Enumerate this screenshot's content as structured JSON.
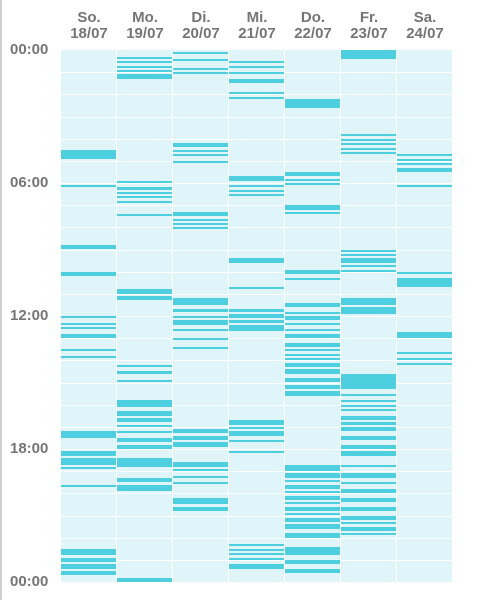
{
  "days": [
    {
      "weekday": "So.",
      "date": "18/07",
      "segments": [
        [
          4.5,
          4.9
        ],
        [
          6.1,
          6.2
        ],
        [
          8.8,
          9.0
        ],
        [
          10.0,
          10.2
        ],
        [
          12.0,
          12.1
        ],
        [
          12.3,
          12.4
        ],
        [
          12.5,
          12.6
        ],
        [
          12.8,
          13.0
        ],
        [
          13.5,
          13.6
        ],
        [
          13.8,
          13.9
        ],
        [
          17.2,
          17.5
        ],
        [
          18.1,
          18.3
        ],
        [
          18.4,
          18.7
        ],
        [
          18.8,
          18.9
        ],
        [
          19.6,
          19.7
        ],
        [
          22.5,
          22.8
        ],
        [
          22.9,
          23.1
        ],
        [
          23.2,
          23.4
        ],
        [
          23.5,
          23.7
        ]
      ]
    },
    {
      "weekday": "Mo.",
      "date": "19/07",
      "segments": [
        [
          0.3,
          0.4
        ],
        [
          0.5,
          0.6
        ],
        [
          0.7,
          0.8
        ],
        [
          0.9,
          1.0
        ],
        [
          1.1,
          1.3
        ],
        [
          5.9,
          6.0
        ],
        [
          6.2,
          6.3
        ],
        [
          6.4,
          6.5
        ],
        [
          6.6,
          6.7
        ],
        [
          6.8,
          6.9
        ],
        [
          7.4,
          7.5
        ],
        [
          10.8,
          11.0
        ],
        [
          11.1,
          11.3
        ],
        [
          14.2,
          14.3
        ],
        [
          14.5,
          14.6
        ],
        [
          14.9,
          15.0
        ],
        [
          15.8,
          16.1
        ],
        [
          16.3,
          16.5
        ],
        [
          16.6,
          16.8
        ],
        [
          16.9,
          17.0
        ],
        [
          17.2,
          17.3
        ],
        [
          17.5,
          17.7
        ],
        [
          17.8,
          18.0
        ],
        [
          18.4,
          18.8
        ],
        [
          19.3,
          19.5
        ],
        [
          19.6,
          19.9
        ],
        [
          23.8,
          24.0
        ]
      ]
    },
    {
      "weekday": "Di.",
      "date": "20/07",
      "segments": [
        [
          0.1,
          0.2
        ],
        [
          0.4,
          0.5
        ],
        [
          0.8,
          0.9
        ],
        [
          1.0,
          1.1
        ],
        [
          4.2,
          4.4
        ],
        [
          4.5,
          4.6
        ],
        [
          4.7,
          4.8
        ],
        [
          5.0,
          5.1
        ],
        [
          7.3,
          7.5
        ],
        [
          7.6,
          7.7
        ],
        [
          7.8,
          7.9
        ],
        [
          8.0,
          8.1
        ],
        [
          11.2,
          11.5
        ],
        [
          11.7,
          11.8
        ],
        [
          12.0,
          12.1
        ],
        [
          12.2,
          12.4
        ],
        [
          12.6,
          12.7
        ],
        [
          13.0,
          13.1
        ],
        [
          13.4,
          13.5
        ],
        [
          17.1,
          17.3
        ],
        [
          17.4,
          17.6
        ],
        [
          17.7,
          17.9
        ],
        [
          18.6,
          18.8
        ],
        [
          18.9,
          19.0
        ],
        [
          19.2,
          19.3
        ],
        [
          19.5,
          19.6
        ],
        [
          20.2,
          20.5
        ],
        [
          20.6,
          20.8
        ]
      ]
    },
    {
      "weekday": "Mi.",
      "date": "21/07",
      "segments": [
        [
          0.5,
          0.6
        ],
        [
          0.7,
          0.8
        ],
        [
          1.0,
          1.1
        ],
        [
          1.3,
          1.5
        ],
        [
          1.9,
          2.0
        ],
        [
          2.1,
          2.2
        ],
        [
          5.7,
          5.9
        ],
        [
          6.1,
          6.2
        ],
        [
          6.3,
          6.4
        ],
        [
          6.5,
          6.6
        ],
        [
          9.4,
          9.6
        ],
        [
          10.7,
          10.8
        ],
        [
          11.7,
          11.8
        ],
        [
          11.9,
          12.1
        ],
        [
          12.2,
          12.3
        ],
        [
          12.4,
          12.7
        ],
        [
          16.7,
          16.9
        ],
        [
          17.0,
          17.1
        ],
        [
          17.2,
          17.4
        ],
        [
          17.6,
          17.7
        ],
        [
          18.1,
          18.2
        ],
        [
          22.3,
          22.4
        ],
        [
          22.5,
          22.6
        ],
        [
          22.7,
          22.8
        ],
        [
          22.9,
          23.0
        ],
        [
          23.2,
          23.4
        ]
      ]
    },
    {
      "weekday": "Do.",
      "date": "22/07",
      "segments": [
        [
          2.2,
          2.6
        ],
        [
          5.5,
          5.7
        ],
        [
          5.8,
          5.9
        ],
        [
          6.0,
          6.1
        ],
        [
          7.0,
          7.2
        ],
        [
          7.3,
          7.4
        ],
        [
          9.9,
          10.1
        ],
        [
          10.3,
          10.4
        ],
        [
          11.4,
          11.6
        ],
        [
          11.8,
          11.9
        ],
        [
          12.0,
          12.2
        ],
        [
          12.3,
          12.4
        ],
        [
          12.6,
          12.7
        ],
        [
          12.8,
          13.0
        ],
        [
          13.2,
          13.4
        ],
        [
          13.5,
          13.6
        ],
        [
          13.7,
          13.8
        ],
        [
          13.9,
          14.0
        ],
        [
          14.1,
          14.3
        ],
        [
          14.4,
          14.6
        ],
        [
          14.8,
          15.0
        ],
        [
          15.1,
          15.3
        ],
        [
          15.4,
          15.6
        ],
        [
          18.7,
          19.0
        ],
        [
          19.1,
          19.3
        ],
        [
          19.4,
          19.5
        ],
        [
          19.6,
          19.8
        ],
        [
          19.9,
          20.0
        ],
        [
          20.1,
          20.3
        ],
        [
          20.4,
          20.5
        ],
        [
          20.6,
          20.8
        ],
        [
          20.9,
          21.0
        ],
        [
          21.1,
          21.3
        ],
        [
          21.4,
          21.6
        ],
        [
          21.8,
          22.0
        ],
        [
          22.4,
          22.8
        ],
        [
          23.0,
          23.2
        ],
        [
          23.4,
          23.6
        ]
      ]
    },
    {
      "weekday": "Fr.",
      "date": "23/07",
      "segments": [
        [
          0.0,
          0.4
        ],
        [
          3.8,
          3.9
        ],
        [
          4.0,
          4.1
        ],
        [
          4.2,
          4.3
        ],
        [
          4.4,
          4.5
        ],
        [
          4.6,
          4.7
        ],
        [
          9.0,
          9.1
        ],
        [
          9.2,
          9.3
        ],
        [
          9.4,
          9.6
        ],
        [
          9.7,
          9.8
        ],
        [
          9.9,
          10.0
        ],
        [
          11.2,
          11.5
        ],
        [
          11.6,
          11.9
        ],
        [
          14.6,
          15.3
        ],
        [
          15.5,
          15.6
        ],
        [
          15.8,
          15.9
        ],
        [
          16.0,
          16.1
        ],
        [
          16.2,
          16.3
        ],
        [
          16.5,
          16.7
        ],
        [
          16.8,
          16.9
        ],
        [
          17.0,
          17.2
        ],
        [
          17.4,
          17.6
        ],
        [
          17.8,
          18.0
        ],
        [
          18.1,
          18.3
        ],
        [
          18.7,
          18.8
        ],
        [
          19.1,
          19.3
        ],
        [
          19.5,
          19.6
        ],
        [
          19.8,
          20.0
        ],
        [
          20.2,
          20.4
        ],
        [
          20.6,
          20.8
        ],
        [
          21.0,
          21.2
        ],
        [
          21.3,
          21.4
        ],
        [
          21.5,
          21.7
        ],
        [
          21.8,
          21.9
        ]
      ]
    },
    {
      "weekday": "Sa.",
      "date": "24/07",
      "segments": [
        [
          4.7,
          4.8
        ],
        [
          4.9,
          5.0
        ],
        [
          5.1,
          5.2
        ],
        [
          5.3,
          5.5
        ],
        [
          6.1,
          6.2
        ],
        [
          10.0,
          10.1
        ],
        [
          10.3,
          10.7
        ],
        [
          12.7,
          13.0
        ],
        [
          13.6,
          13.7
        ],
        [
          13.9,
          14.0
        ],
        [
          14.1,
          14.2
        ]
      ]
    }
  ],
  "time_axis": [
    "00:00",
    "06:00",
    "12:00",
    "18:00",
    "00:00"
  ],
  "time_axis_hours": [
    0,
    6,
    12,
    18,
    24
  ],
  "colors": {
    "background": "#ffffff",
    "column": "#e0f5f9",
    "activity": "#4ecfdf",
    "grid": "#ffffff",
    "label": "#757575"
  }
}
